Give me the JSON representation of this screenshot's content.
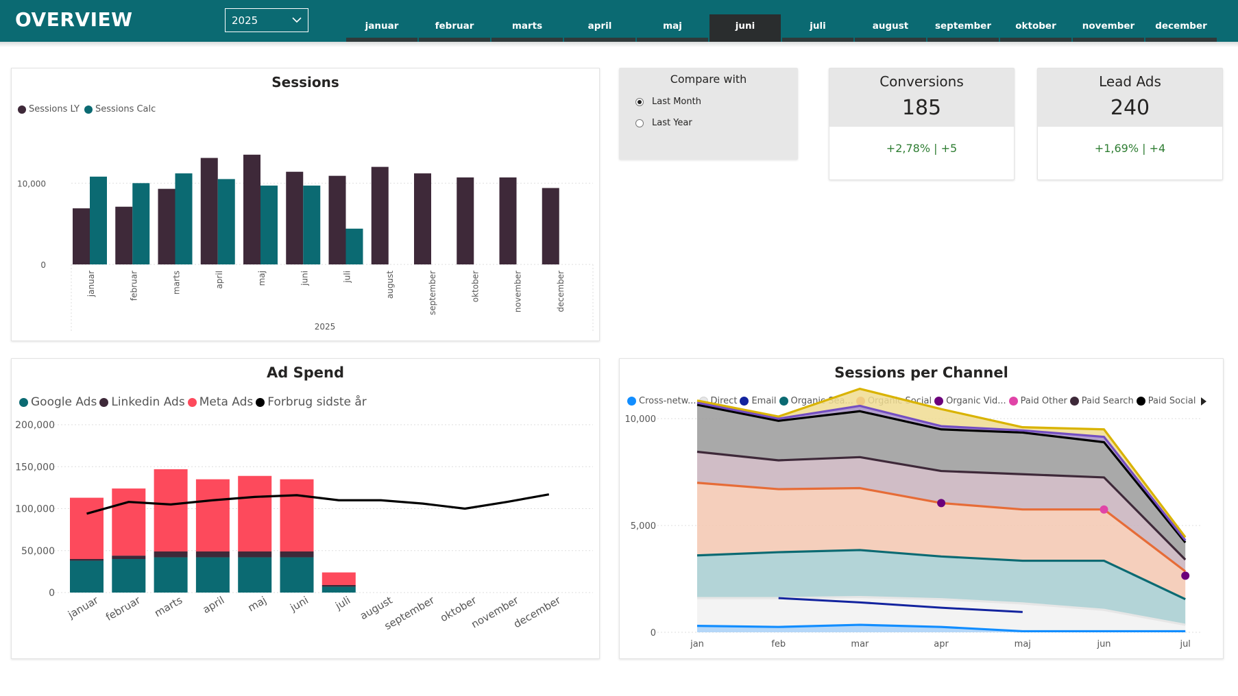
{
  "header": {
    "title": "OVERVIEW",
    "year_selected": "2025",
    "months": [
      "januar",
      "februar",
      "marts",
      "april",
      "maj",
      "juni",
      "juli",
      "august",
      "september",
      "oktober",
      "november",
      "december"
    ],
    "active_month": "juni"
  },
  "colors": {
    "header_bg": "#0b6a72",
    "teal": "#0b6a72",
    "plum": "#3e2939",
    "red": "#fd4a5c",
    "positive": "#2e7d32"
  },
  "sessions": {
    "title": "Sessions",
    "legend": [
      {
        "name": "Sessions LY",
        "color": "#3e2939"
      },
      {
        "name": "Sessions Calc",
        "color": "#0b6a72"
      }
    ],
    "chart_data": {
      "type": "bar",
      "title": "Sessions",
      "categories": [
        "januar",
        "februar",
        "marts",
        "april",
        "maj",
        "juni",
        "juli",
        "august",
        "september",
        "oktober",
        "november",
        "december"
      ],
      "series": [
        {
          "name": "Sessions LY",
          "values": [
            6900,
            7100,
            9300,
            13100,
            13500,
            11400,
            10900,
            12000,
            11200,
            10700,
            10700,
            9400
          ]
        },
        {
          "name": "Sessions Calc",
          "values": [
            10800,
            10000,
            11200,
            10500,
            9700,
            9700,
            4400,
            null,
            null,
            null,
            null,
            null
          ]
        }
      ],
      "xlabel": "2025",
      "ylim": [
        0,
        15000
      ],
      "yticks": [
        0,
        10000
      ],
      "ytick_labels": [
        "0",
        "10,000"
      ]
    }
  },
  "compare": {
    "title": "Compare with",
    "options": [
      {
        "label": "Last Month",
        "selected": true
      },
      {
        "label": "Last Year",
        "selected": false
      }
    ]
  },
  "kpis": [
    {
      "label": "Conversions",
      "value": "185",
      "delta": "+2,78% | +5"
    },
    {
      "label": "Lead Ads",
      "value": "240",
      "delta": "+1,69% | +4"
    }
  ],
  "ad_spend": {
    "title": "Ad Spend",
    "legend": [
      {
        "name": "Google Ads",
        "color": "#0b6a72"
      },
      {
        "name": "Linkedin Ads",
        "color": "#3e2939"
      },
      {
        "name": "Meta Ads",
        "color": "#fd4a5c"
      },
      {
        "name": "Forbrug sidste år",
        "color": "#000000"
      }
    ],
    "chart_data": {
      "type": "bar",
      "title": "Ad Spend",
      "stacked": true,
      "categories": [
        "januar",
        "februar",
        "marts",
        "april",
        "maj",
        "juni",
        "juli",
        "august",
        "september",
        "oktober",
        "november",
        "december"
      ],
      "series": [
        {
          "name": "Google Ads",
          "values": [
            38000,
            40000,
            42000,
            42000,
            42000,
            42000,
            7000,
            null,
            null,
            null,
            null,
            null
          ]
        },
        {
          "name": "Linkedin Ads",
          "values": [
            2000,
            4000,
            7000,
            7000,
            7000,
            7000,
            2000,
            null,
            null,
            null,
            null,
            null
          ]
        },
        {
          "name": "Meta Ads",
          "values": [
            73000,
            80000,
            98000,
            86000,
            90000,
            86000,
            15000,
            null,
            null,
            null,
            null,
            null
          ]
        },
        {
          "name": "Forbrug sidste år",
          "type": "line",
          "values": [
            94000,
            108000,
            105000,
            110000,
            114000,
            116000,
            110000,
            110000,
            106000,
            100000,
            108000,
            117000
          ]
        }
      ],
      "ylim": [
        0,
        200000
      ],
      "yticks": [
        0,
        50000,
        100000,
        150000,
        200000
      ],
      "ytick_labels": [
        "0",
        "50,000",
        "100,000",
        "150,000",
        "200,000"
      ]
    }
  },
  "channels": {
    "title": "Sessions per Channel",
    "legend": [
      {
        "name": "Cross-netw...",
        "color": "#118dff"
      },
      {
        "name": "Direct",
        "color": "#e6e6e6"
      },
      {
        "name": "Email",
        "color": "#12239e"
      },
      {
        "name": "Organic Sea...",
        "color": "#0b6a72"
      },
      {
        "name": "Organic Social",
        "color": "#e66c37"
      },
      {
        "name": "Organic Vid...",
        "color": "#6b007b"
      },
      {
        "name": "Paid Other",
        "color": "#e044a7"
      },
      {
        "name": "Paid Search",
        "color": "#3e2939"
      },
      {
        "name": "Paid Social",
        "color": "#000000"
      }
    ],
    "chart_data": {
      "type": "area",
      "title": "Sessions per Channel",
      "stacked": true,
      "x": [
        "jan",
        "feb",
        "mar",
        "apr",
        "maj",
        "jun",
        "jul"
      ],
      "series": [
        {
          "name": "Cross-netw...",
          "values": [
            300,
            250,
            350,
            250,
            50,
            50,
            50
          ]
        },
        {
          "name": "Direct",
          "values": [
            1300,
            1350,
            1300,
            1300,
            1300,
            1000,
            300
          ]
        },
        {
          "name": "Organic Sea...",
          "values": [
            2000,
            2150,
            2200,
            2000,
            2000,
            2300,
            1200
          ]
        },
        {
          "name": "Organic Social",
          "values": [
            3400,
            2950,
            2900,
            2500,
            2400,
            2400,
            1300
          ]
        },
        {
          "name": "Paid Search",
          "values": [
            1450,
            1350,
            1450,
            1500,
            1650,
            1500,
            550
          ]
        },
        {
          "name": "Paid Social",
          "values": [
            2200,
            1850,
            2150,
            1950,
            1950,
            1650,
            800
          ]
        },
        {
          "name": "Organic Vid...",
          "values": [
            100,
            100,
            250,
            150,
            100,
            250,
            100
          ]
        },
        {
          "name": "Paid Other",
          "values": [
            100,
            100,
            800,
            800,
            150,
            350,
            150
          ]
        }
      ],
      "email_line": {
        "name": "Email",
        "values": [
          null,
          1600,
          1400,
          1150,
          950,
          null,
          null
        ]
      },
      "ylim": [
        0,
        11000
      ],
      "yticks": [
        0,
        5000,
        10000
      ],
      "ytick_labels": [
        "0",
        "5,000",
        "10,000"
      ]
    }
  }
}
